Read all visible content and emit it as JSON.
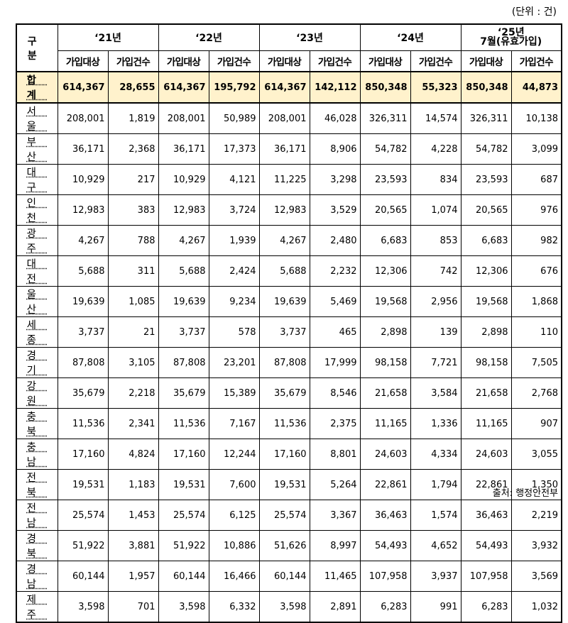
{
  "unit_note": "(단위 : 건)",
  "source_note": "출처: 행정안전부",
  "table": {
    "region_header": "구 분",
    "years": [
      {
        "label": "‘21년"
      },
      {
        "label": "‘22년"
      },
      {
        "label": "‘23년"
      },
      {
        "label": "‘24년"
      },
      {
        "label": "‘25년",
        "label2": "7월(유효가입)"
      }
    ],
    "sub_headers": [
      "가입대상",
      "가입건수",
      "가입대상",
      "가입건수",
      "가입대상",
      "가입건수",
      "가입대상",
      "가입건수",
      "가입대상",
      "가입건수"
    ],
    "rows": [
      {
        "region": "합 계",
        "values": [
          "614,367",
          "28,655",
          "614,367",
          "195,792",
          "614,367",
          "142,112",
          "850,348",
          "55,323",
          "850,348",
          "44,873"
        ]
      },
      {
        "region": "서 울",
        "values": [
          "208,001",
          "1,819",
          "208,001",
          "50,989",
          "208,001",
          "46,028",
          "326,311",
          "14,574",
          "326,311",
          "10,138"
        ]
      },
      {
        "region": "부 산",
        "values": [
          "36,171",
          "2,368",
          "36,171",
          "17,373",
          "36,171",
          "8,906",
          "54,782",
          "4,228",
          "54,782",
          "3,099"
        ]
      },
      {
        "region": "대 구",
        "values": [
          "10,929",
          "217",
          "10,929",
          "4,121",
          "11,225",
          "3,298",
          "23,593",
          "834",
          "23,593",
          "687"
        ]
      },
      {
        "region": "인 천",
        "values": [
          "12,983",
          "383",
          "12,983",
          "3,724",
          "12,983",
          "3,529",
          "20,565",
          "1,074",
          "20,565",
          "976"
        ]
      },
      {
        "region": "광 주",
        "values": [
          "4,267",
          "788",
          "4,267",
          "1,939",
          "4,267",
          "2,480",
          "6,683",
          "853",
          "6,683",
          "982"
        ]
      },
      {
        "region": "대 전",
        "values": [
          "5,688",
          "311",
          "5,688",
          "2,424",
          "5,688",
          "2,232",
          "12,306",
          "742",
          "12,306",
          "676"
        ]
      },
      {
        "region": "울 산",
        "values": [
          "19,639",
          "1,085",
          "19,639",
          "9,234",
          "19,639",
          "5,469",
          "19,568",
          "2,956",
          "19,568",
          "1,868"
        ]
      },
      {
        "region": "세 종",
        "values": [
          "3,737",
          "21",
          "3,737",
          "578",
          "3,737",
          "465",
          "2,898",
          "139",
          "2,898",
          "110"
        ]
      },
      {
        "region": "경 기",
        "values": [
          "87,808",
          "3,105",
          "87,808",
          "23,201",
          "87,808",
          "17,999",
          "98,158",
          "7,721",
          "98,158",
          "7,505"
        ]
      },
      {
        "region": "강 원",
        "values": [
          "35,679",
          "2,218",
          "35,679",
          "15,389",
          "35,679",
          "8,546",
          "21,658",
          "3,584",
          "21,658",
          "2,768"
        ]
      },
      {
        "region": "충 북",
        "values": [
          "11,536",
          "2,341",
          "11,536",
          "7,167",
          "11,536",
          "2,375",
          "11,165",
          "1,336",
          "11,165",
          "907"
        ]
      },
      {
        "region": "충 남",
        "values": [
          "17,160",
          "4,824",
          "17,160",
          "12,244",
          "17,160",
          "8,801",
          "24,603",
          "4,334",
          "24,603",
          "3,055"
        ]
      },
      {
        "region": "전 북",
        "values": [
          "19,531",
          "1,183",
          "19,531",
          "7,600",
          "19,531",
          "5,264",
          "22,861",
          "1,794",
          "22,861",
          "1,350"
        ]
      },
      {
        "region": "전 남",
        "values": [
          "25,574",
          "1,453",
          "25,574",
          "6,125",
          "25,574",
          "3,367",
          "36,463",
          "1,574",
          "36,463",
          "2,219"
        ]
      },
      {
        "region": "경 북",
        "values": [
          "51,922",
          "3,881",
          "51,922",
          "10,886",
          "51,626",
          "8,997",
          "54,493",
          "4,652",
          "54,493",
          "3,932"
        ]
      },
      {
        "region": "경 남",
        "values": [
          "60,144",
          "1,957",
          "60,144",
          "16,466",
          "60,144",
          "11,465",
          "107,958",
          "3,937",
          "107,958",
          "3,569"
        ]
      },
      {
        "region": "제 주",
        "values": [
          "3,598",
          "701",
          "3,598",
          "6,332",
          "3,598",
          "2,891",
          "6,283",
          "991",
          "6,283",
          "1,032"
        ]
      }
    ],
    "colors": {
      "total_row_bg": "#fff2cc",
      "border": "#000000"
    }
  }
}
